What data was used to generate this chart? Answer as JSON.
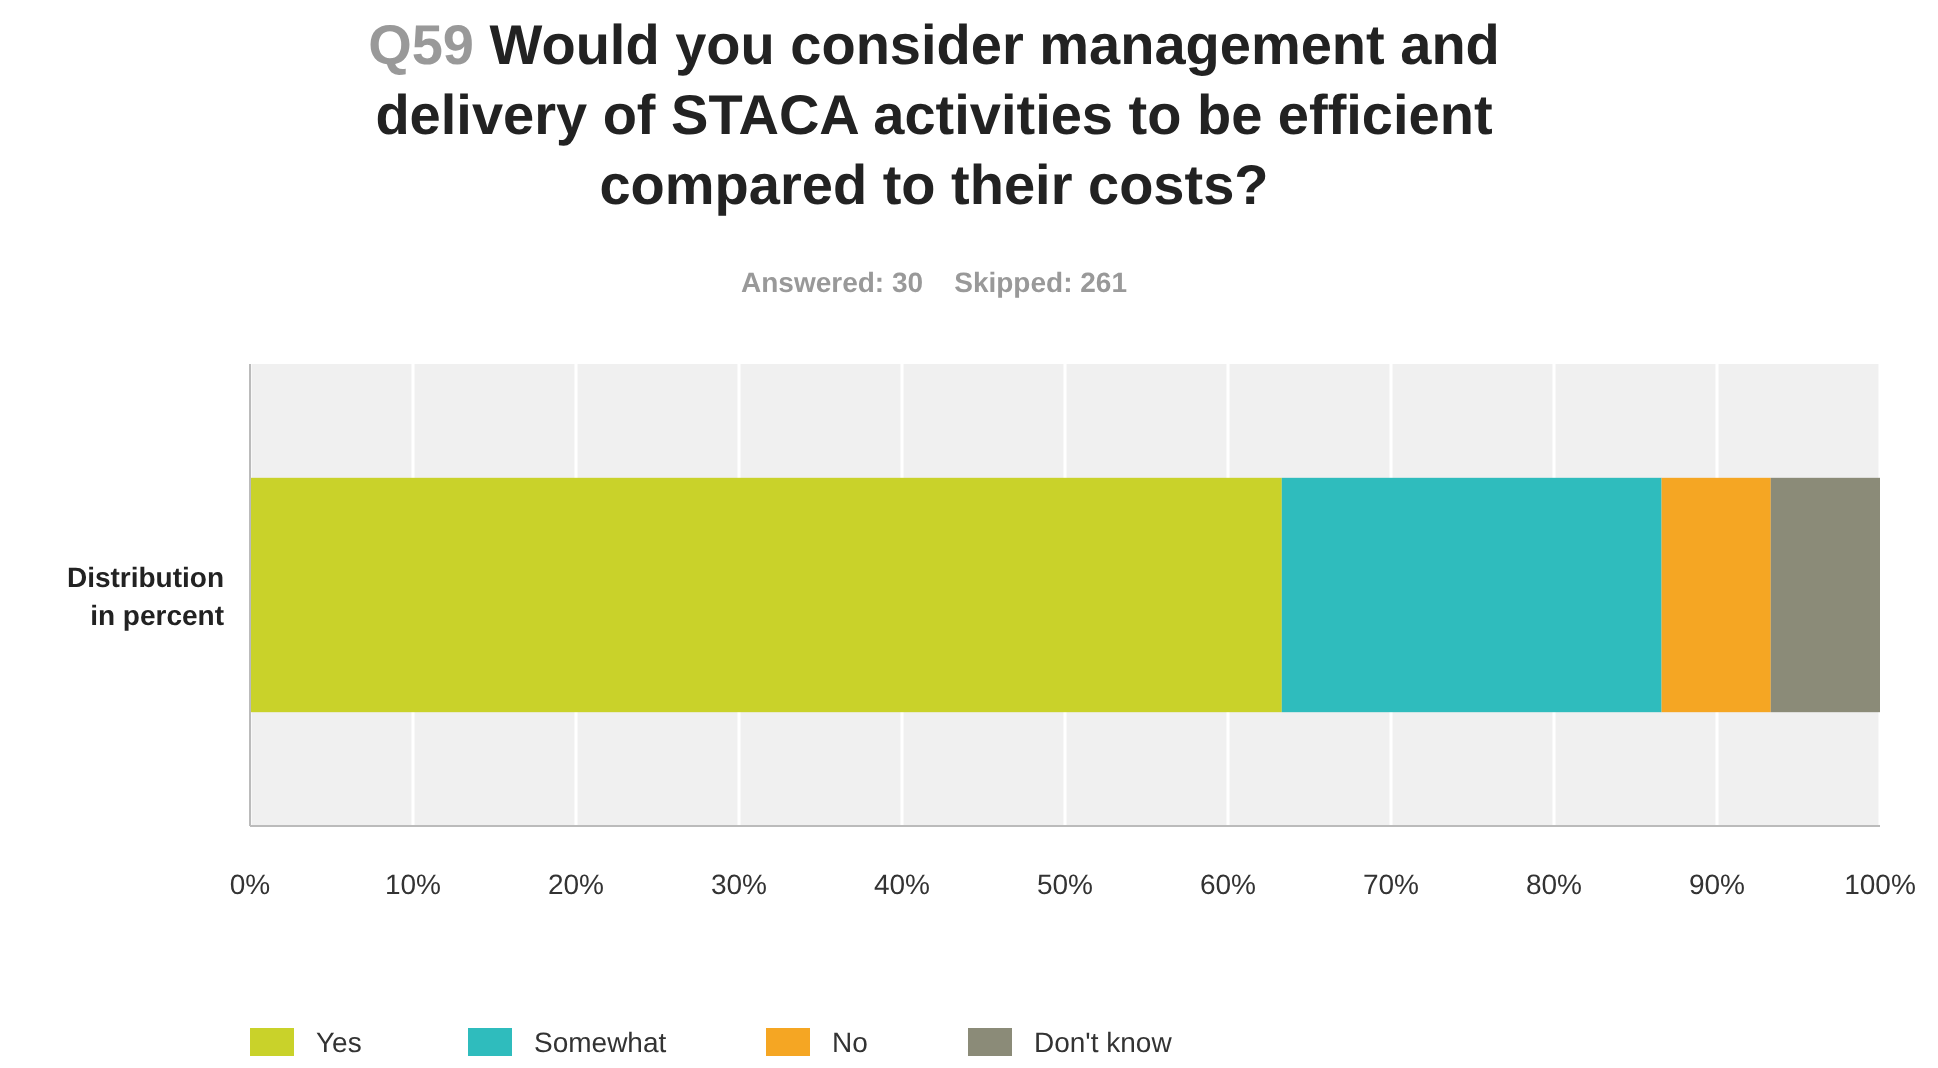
{
  "chart_data": {
    "type": "bar",
    "orientation": "horizontal",
    "stacked": true,
    "title": "Q59 Would you consider management and delivery of STACA activities to be efficient compared to their costs?",
    "subtitle": "Answered: 30    Skipped: 261",
    "categories": [
      "Distribution in percent"
    ],
    "series": [
      {
        "name": "Yes",
        "color": "#c9d22a",
        "values": [
          63.3
        ]
      },
      {
        "name": "Somewhat",
        "color": "#2fbcbd",
        "values": [
          23.3
        ]
      },
      {
        "name": "No",
        "color": "#f5a623",
        "values": [
          6.7
        ]
      },
      {
        "name": "Don't know",
        "color": "#8b8b78",
        "values": [
          6.7
        ]
      }
    ],
    "xlim": [
      0,
      100
    ],
    "xticks": [
      {
        "value": 0,
        "label": "0%"
      },
      {
        "value": 10,
        "label": "10%"
      },
      {
        "value": 20,
        "label": "20%"
      },
      {
        "value": 30,
        "label": "30%"
      },
      {
        "value": 40,
        "label": "40%"
      },
      {
        "value": 50,
        "label": "50%"
      },
      {
        "value": 60,
        "label": "60%"
      },
      {
        "value": 70,
        "label": "70%"
      },
      {
        "value": 80,
        "label": "80%"
      },
      {
        "value": 90,
        "label": "90%"
      },
      {
        "value": 100,
        "label": "100%"
      }
    ],
    "grid": "x",
    "legend": "bottom"
  }
}
